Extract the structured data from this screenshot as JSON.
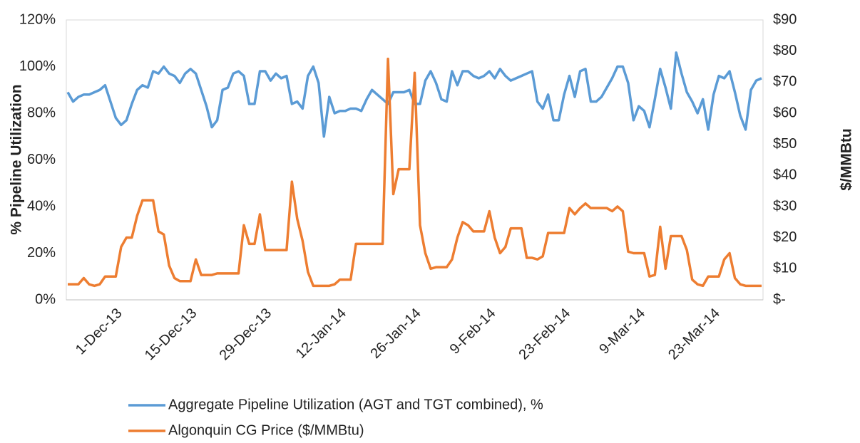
{
  "chart_data": {
    "type": "line",
    "categories": [
      null,
      null,
      null,
      null,
      null,
      null,
      null,
      null,
      null,
      "1-Dec-13",
      null,
      null,
      null,
      null,
      null,
      null,
      null,
      null,
      null,
      null,
      null,
      null,
      null,
      "15-Dec-13",
      null,
      null,
      null,
      null,
      null,
      null,
      null,
      null,
      null,
      null,
      null,
      null,
      null,
      "29-Dec-13",
      null,
      null,
      null,
      null,
      null,
      null,
      null,
      null,
      null,
      null,
      null,
      null,
      null,
      "12-Jan-14",
      null,
      null,
      null,
      null,
      null,
      null,
      null,
      null,
      null,
      null,
      null,
      null,
      null,
      "26-Jan-14",
      null,
      null,
      null,
      null,
      null,
      null,
      null,
      null,
      null,
      null,
      null,
      null,
      null,
      "9-Feb-14",
      null,
      null,
      null,
      null,
      null,
      null,
      null,
      null,
      null,
      null,
      null,
      null,
      null,
      "23-Feb-14",
      null,
      null,
      null,
      null,
      null,
      null,
      null,
      null,
      null,
      null,
      null,
      null,
      null,
      "9-Mar-14",
      null,
      null,
      null,
      null,
      null,
      null,
      null,
      null,
      null,
      null,
      null,
      null,
      null,
      "23-Mar-14",
      null,
      null,
      null,
      null,
      null,
      null,
      null,
      null,
      null
    ],
    "series": [
      {
        "name": "Aggregate Pipeline Utilization (AGT and TGT combined), %",
        "color": "#5b9bd5",
        "axis": "y",
        "values": [
          89,
          85,
          87,
          88,
          88,
          89,
          90,
          92,
          85,
          78,
          75,
          77,
          84,
          90,
          92,
          91,
          98,
          97,
          100,
          97,
          96,
          93,
          97,
          99,
          97,
          90,
          83,
          74,
          77,
          90,
          91,
          97,
          98,
          96,
          84,
          84,
          98,
          98,
          94,
          97,
          95,
          96,
          84,
          85,
          82,
          96,
          100,
          93,
          70,
          87,
          80,
          81,
          81,
          82,
          82,
          81,
          86,
          90,
          88,
          86,
          84,
          89,
          89,
          89,
          90,
          84,
          84,
          94,
          98,
          93,
          86,
          85,
          98,
          92,
          98,
          98,
          96,
          95,
          96,
          98,
          95,
          99,
          96,
          94,
          95,
          96,
          97,
          98,
          85,
          82,
          88,
          77,
          77,
          88,
          96,
          87,
          98,
          99,
          85,
          85,
          87,
          91,
          95,
          100,
          100,
          93,
          77,
          83,
          81,
          74,
          86,
          99,
          91,
          82,
          106,
          97,
          89,
          85,
          80,
          86,
          73,
          88,
          96,
          95,
          98,
          89,
          79,
          73,
          90,
          94,
          95
        ]
      },
      {
        "name": "Algonquin CG Price ($/MMBtu)",
        "color": "#ed7d31",
        "axis": "y2",
        "values": [
          5,
          5,
          5,
          7,
          5,
          4.5,
          5,
          7.5,
          7.5,
          7.5,
          17,
          20,
          20,
          27,
          32,
          32,
          32,
          22,
          21,
          11,
          7,
          6,
          6,
          6,
          13,
          8,
          8,
          8,
          8.5,
          8.5,
          8.5,
          8.5,
          8.5,
          24,
          18,
          18,
          27.5,
          16,
          16,
          16,
          16,
          16,
          38,
          26,
          19,
          9,
          4.5,
          4.5,
          4.5,
          4.5,
          5,
          6.5,
          6.5,
          6.5,
          18,
          18,
          18,
          18,
          18,
          18,
          77.5,
          34,
          42,
          42,
          42,
          73,
          24,
          15,
          10,
          10.5,
          10.5,
          10.5,
          13,
          20,
          25,
          24,
          22,
          22,
          22,
          28.5,
          20,
          15,
          17,
          23,
          23,
          23,
          13.5,
          13.5,
          13,
          14,
          21.5,
          21.5,
          21.5,
          21.5,
          29.5,
          27.5,
          29.5,
          31,
          29.5,
          29.5,
          29.5,
          29.5,
          28.5,
          30,
          28.5,
          15.5,
          15,
          15,
          15,
          7.5,
          8,
          23.5,
          10,
          20.5,
          20.5,
          20.5,
          16,
          6.5,
          5,
          4.5,
          7.5,
          7.5,
          7.5,
          13,
          15,
          7,
          5,
          4.5,
          4.5,
          4.5,
          4.5
        ]
      }
    ],
    "y_label": "% Pipeline Utilization",
    "y2_label": "$/MMBtu",
    "ylim": [
      0,
      120
    ],
    "yticks": [
      {
        "value": 0,
        "label": "0%"
      },
      {
        "value": 20,
        "label": "20%"
      },
      {
        "value": 40,
        "label": "40%"
      },
      {
        "value": 60,
        "label": "60%"
      },
      {
        "value": 80,
        "label": "80%"
      },
      {
        "value": 100,
        "label": "100%"
      },
      {
        "value": 120,
        "label": "120%"
      }
    ],
    "y2lim": [
      0,
      90
    ],
    "y2ticks": [
      {
        "value": 0,
        "label": "$-"
      },
      {
        "value": 10,
        "label": "$10"
      },
      {
        "value": 20,
        "label": "$20"
      },
      {
        "value": 30,
        "label": "$30"
      },
      {
        "value": 40,
        "label": "$40"
      },
      {
        "value": 50,
        "label": "$50"
      },
      {
        "value": 60,
        "label": "$60"
      },
      {
        "value": 70,
        "label": "$70"
      },
      {
        "value": 80,
        "label": "$80"
      },
      {
        "value": 90,
        "label": "$90"
      }
    ],
    "legend": "bottom"
  }
}
